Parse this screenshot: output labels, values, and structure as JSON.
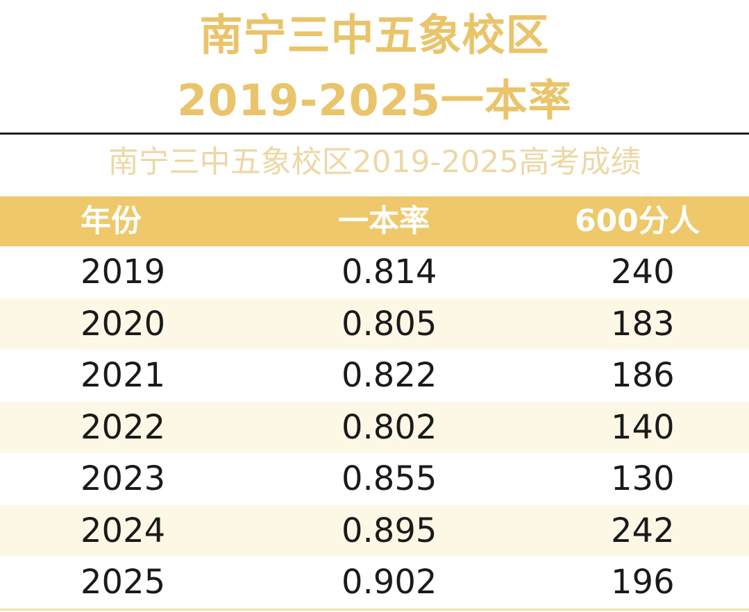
{
  "title_line1": "南宁三中五象校区",
  "title_line2": "2019-2025一本率",
  "chart_data": {
    "type": "table",
    "title": "南宁三中五象校区2019-2025高考成绩",
    "columns": [
      "年份",
      "一本率",
      "600分人"
    ],
    "rows": [
      [
        "2019",
        "0.814",
        "240"
      ],
      [
        "2020",
        "0.805",
        "183"
      ],
      [
        "2021",
        "0.822",
        "186"
      ],
      [
        "2022",
        "0.802",
        "140"
      ],
      [
        "2023",
        "0.855",
        "130"
      ],
      [
        "2024",
        "0.895",
        "242"
      ],
      [
        "2025",
        "0.902",
        "196"
      ]
    ],
    "colors": {
      "title": "#e9c46a",
      "subtitle": "#ecd8a6",
      "header_bg": "#eec86a",
      "header_text": "#ffffff",
      "alt_row_bg": "#fdf8e6",
      "divider": "#1f1f1f"
    }
  }
}
